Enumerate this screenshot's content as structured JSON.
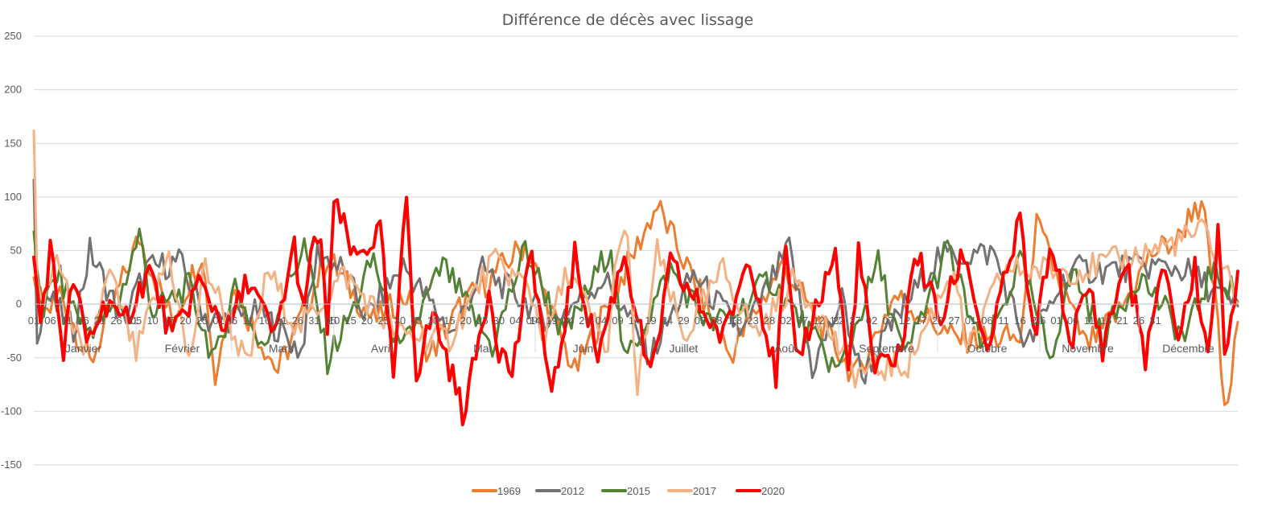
{
  "chart_data": {
    "type": "line",
    "title": "Différence de décès avec lissage",
    "xlabel": "",
    "ylabel": "",
    "ylim": [
      -150,
      250
    ],
    "yticks": [
      250,
      200,
      150,
      100,
      50,
      0,
      -50,
      -100,
      -150
    ],
    "grid": true,
    "legend_position": "bottom",
    "x_range_days": [
      1,
      366
    ],
    "months": [
      {
        "label": "Janvier",
        "days": 31
      },
      {
        "label": "Février",
        "days": 29
      },
      {
        "label": "Mars",
        "days": 31
      },
      {
        "label": "Avril",
        "days": 30
      },
      {
        "label": "Mai",
        "days": 31
      },
      {
        "label": "Juin",
        "days": 30
      },
      {
        "label": "Juillet",
        "days": 31
      },
      {
        "label": "Août",
        "days": 31
      },
      {
        "label": "Septembre",
        "days": 30
      },
      {
        "label": "Octobre",
        "days": 31
      },
      {
        "label": "Novembre",
        "days": 30
      },
      {
        "label": "Décembre",
        "days": 31
      }
    ],
    "day_tick_labels": [
      "01",
      "06",
      "11",
      "16",
      "21",
      "26",
      "31",
      "05",
      "10",
      "15",
      "20",
      "25",
      "01",
      "06",
      "11",
      "16",
      "21",
      "26",
      "31",
      "05",
      "10",
      "15",
      "20",
      "25",
      "30",
      "05",
      "10",
      "15",
      "20",
      "25",
      "30",
      "04",
      "09",
      "14",
      "19",
      "24",
      "29",
      "04",
      "09",
      "14",
      "19",
      "24",
      "29",
      "03",
      "08",
      "13",
      "18",
      "23",
      "28",
      "02",
      "07",
      "12",
      "17",
      "22",
      "27",
      "02",
      "07",
      "12",
      "17",
      "22",
      "27",
      "01",
      "06",
      "11",
      "16",
      "21",
      "26",
      "01",
      "06",
      "11",
      "16",
      "21",
      "26",
      "31"
    ],
    "series": [
      {
        "name": "1969",
        "color": "#ED7D31",
        "width": 3,
        "x": [
          1,
          5,
          9,
          18,
          33,
          43,
          52,
          56,
          61,
          75,
          90,
          104,
          114,
          121,
          130,
          150,
          165,
          190,
          212,
          228,
          250,
          262,
          280,
          300,
          305,
          320,
          330,
          340,
          348,
          353,
          356,
          357,
          360,
          362,
          364,
          366
        ],
        "y": [
          20,
          -10,
          15,
          -70,
          78,
          -20,
          62,
          -88,
          20,
          -78,
          55,
          -20,
          10,
          -60,
          -5,
          70,
          -80,
          115,
          -60,
          45,
          -85,
          10,
          -40,
          -40,
          92,
          -50,
          -10,
          60,
          75,
          118,
          100,
          60,
          -20,
          -132,
          -90,
          -20
        ]
      },
      {
        "name": "2012",
        "color": "#767171",
        "width": 3,
        "x": [
          1,
          2,
          5,
          13,
          18,
          28,
          35,
          45,
          54,
          70,
          82,
          87,
          94,
          102,
          113,
          128,
          137,
          158,
          174,
          188,
          201,
          216,
          230,
          237,
          246,
          252,
          262,
          275,
          292,
          302,
          315,
          325,
          340,
          350,
          366
        ],
        "y": [
          140,
          -30,
          10,
          -30,
          62,
          -20,
          40,
          50,
          -20,
          -10,
          -55,
          60,
          42,
          -15,
          45,
          -35,
          40,
          -20,
          30,
          -60,
          35,
          -35,
          65,
          -75,
          5,
          -85,
          -20,
          55,
          60,
          -50,
          40,
          40,
          45,
          40,
          -5
        ]
      },
      {
        "name": "2015",
        "color": "#548235",
        "width": 3,
        "x": [
          1,
          4,
          8,
          17,
          26,
          33,
          37,
          48,
          56,
          62,
          70,
          83,
          90,
          98,
          104,
          112,
          125,
          140,
          150,
          162,
          176,
          180,
          194,
          206,
          214,
          224,
          245,
          257,
          265,
          278,
          289,
          300,
          309,
          316,
          325,
          336,
          350,
          358,
          366
        ],
        "y": [
          68,
          -5,
          35,
          -30,
          -5,
          82,
          -10,
          20,
          -68,
          25,
          -55,
          70,
          -65,
          -5,
          55,
          -60,
          45,
          -50,
          65,
          -40,
          70,
          -70,
          40,
          -25,
          -10,
          30,
          -80,
          48,
          -65,
          65,
          -60,
          50,
          -62,
          40,
          -40,
          35,
          -40,
          40,
          10
        ]
      },
      {
        "name": "2017",
        "color": "#F4B183",
        "width": 3,
        "x": [
          1,
          2,
          4,
          8,
          16,
          24,
          32,
          42,
          48,
          53,
          66,
          72,
          81,
          95,
          111,
          127,
          140,
          151,
          156,
          163,
          175,
          178,
          181,
          184,
          190,
          198,
          210,
          220,
          232,
          250,
          266,
          280,
          284,
          295,
          318,
          334,
          356,
          366
        ],
        "y": [
          195,
          40,
          -10,
          60,
          -70,
          35,
          -60,
          60,
          -70,
          45,
          -75,
          40,
          -30,
          35,
          -35,
          -40,
          50,
          20,
          -40,
          40,
          -55,
          75,
          70,
          -105,
          60,
          -40,
          40,
          -35,
          30,
          -80,
          -70,
          45,
          -60,
          40,
          40,
          55,
          85,
          10
        ]
      },
      {
        "name": "2020",
        "color": "#FF0000",
        "width": 4,
        "x": [
          1,
          3,
          6,
          10,
          13,
          17,
          24,
          27,
          36,
          43,
          51,
          60,
          66,
          74,
          80,
          83,
          86,
          88,
          90,
          92,
          96,
          98,
          106,
          110,
          114,
          117,
          122,
          126,
          131,
          134,
          139,
          142,
          146,
          152,
          158,
          165,
          172,
          180,
          188,
          194,
          210,
          218,
          226,
          229,
          232,
          244,
          248,
          251,
          256,
          262,
          265,
          268,
          276,
          283,
          290,
          297,
          300,
          304,
          310,
          315,
          321,
          325,
          332,
          338,
          344,
          348,
          353,
          357,
          360,
          362,
          366
        ],
        "y": [
          52,
          -20,
          65,
          -55,
          30,
          -45,
          10,
          -30,
          40,
          -40,
          25,
          -30,
          30,
          -40,
          68,
          -15,
          85,
          60,
          -25,
          115,
          80,
          50,
          85,
          -90,
          128,
          -80,
          -10,
          -60,
          -125,
          -80,
          20,
          -50,
          -80,
          60,
          -115,
          55,
          -60,
          60,
          -90,
          45,
          -40,
          60,
          -85,
          60,
          -70,
          60,
          -80,
          62,
          -80,
          -60,
          -40,
          65,
          -20,
          62,
          -55,
          50,
          99,
          -40,
          70,
          -45,
          20,
          -50,
          50,
          -60,
          45,
          -40,
          40,
          -60,
          80,
          -55,
          40
        ]
      }
    ]
  },
  "legend": {
    "items": [
      {
        "label": "1969",
        "color": "#ED7D31"
      },
      {
        "label": "2012",
        "color": "#767171"
      },
      {
        "label": "2015",
        "color": "#548235"
      },
      {
        "label": "2017",
        "color": "#F4B183"
      },
      {
        "label": "2020",
        "color": "#FF0000"
      }
    ]
  }
}
